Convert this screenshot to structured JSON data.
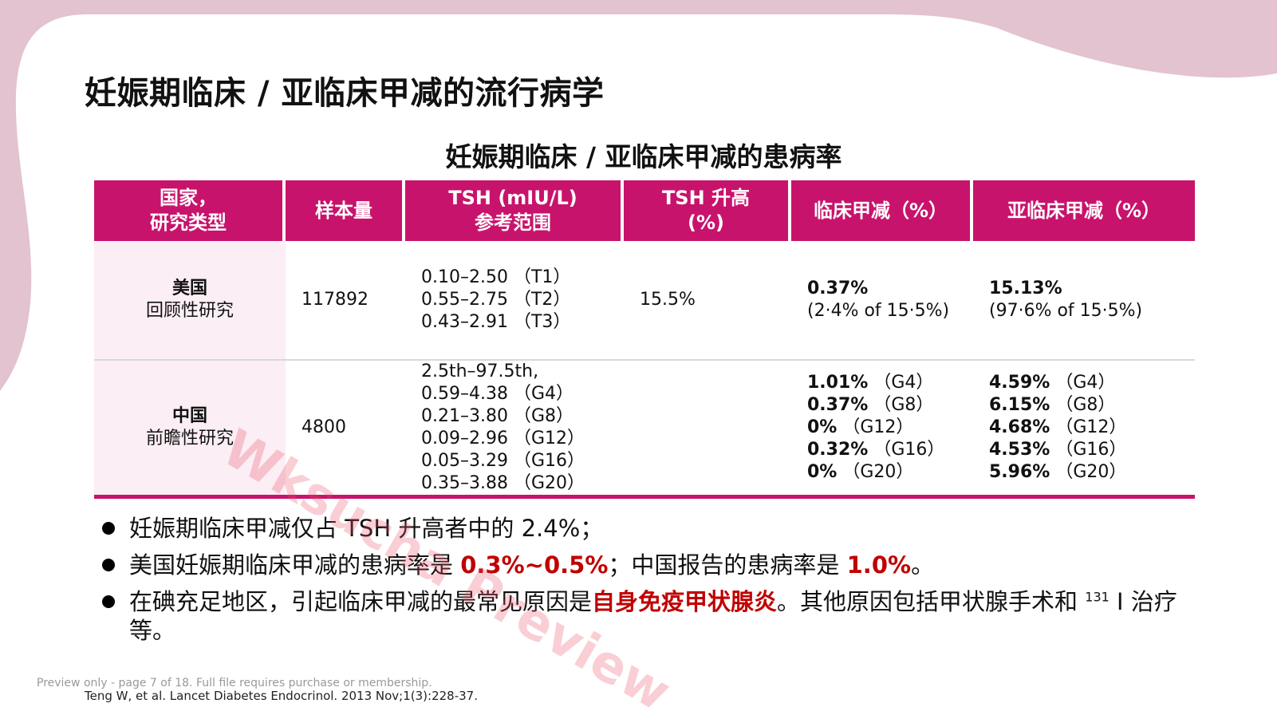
{
  "title": "妊娠期临床 / 亚临床甲减的流行病学",
  "table": {
    "title": "妊娠期临床 / 亚临床甲减的患病率",
    "headers": {
      "country": [
        "国家，",
        "研究类型"
      ],
      "sample": "样本量",
      "tsh_range": [
        "TSH (mIU/L)",
        "参考范围"
      ],
      "tsh_high": [
        "TSH 升高",
        "(%)"
      ],
      "clinical": "临床甲减（%）",
      "subclinical": "亚临床甲减（%）"
    },
    "rows": [
      {
        "country": "美国",
        "study_type": "回顾性研究",
        "sample": "117892",
        "ranges": [
          "0.10–2.50 （T1）",
          "0.55–2.75 （T2）",
          "0.43–2.91 （T3）"
        ],
        "tsh_high": "15.5%",
        "clinical": [
          {
            "value": "0.37%",
            "note": ""
          },
          {
            "value": "",
            "note": "(2·4% of 15·5%)"
          }
        ],
        "subclinical": [
          {
            "value": "15.13%",
            "note": ""
          },
          {
            "value": "",
            "note": "(97·6% of 15·5%)"
          }
        ]
      },
      {
        "country": "中国",
        "study_type": "前瞻性研究",
        "sample": "4800",
        "ranges": [
          "2.5th–97.5th,",
          "0.59–4.38 （G4）",
          "0.21–3.80 （G8）",
          "0.09–2.96 （G12）",
          "0.05–3.29 （G16）",
          "0.35–3.88 （G20）"
        ],
        "tsh_high": "",
        "clinical": [
          {
            "value": "1.01%",
            "note": "（G4）"
          },
          {
            "value": "0.37%",
            "note": "（G8）"
          },
          {
            "value": "0%",
            "note": "（G12）"
          },
          {
            "value": "0.32%",
            "note": "（G16）"
          },
          {
            "value": "0%",
            "note": "（G20）"
          }
        ],
        "subclinical": [
          {
            "value": "4.59%",
            "note": "（G4）"
          },
          {
            "value": "6.15%",
            "note": "（G8）"
          },
          {
            "value": "4.68%",
            "note": "（G12）"
          },
          {
            "value": "4.53%",
            "note": "（G16）"
          },
          {
            "value": "5.96%",
            "note": "（G20）"
          }
        ]
      }
    ]
  },
  "bullets": [
    {
      "text_1": "妊娠期临床甲减仅占 TSH 升高者中的 2.4%；"
    },
    {
      "text_1": "美国妊娠期临床甲减的患病率是 ",
      "highlight_1": "0.3%~0.5%",
      "text_2": "；中国报告的患病率是 ",
      "highlight_2": "1.0%",
      "text_3": "。"
    },
    {
      "text_1": "在碘充足地区，引起临床甲减的最常见原因是",
      "highlight_1": "自身免疫甲状腺炎",
      "text_2": "。其他原因包括甲状腺手术和 ",
      "sup": "131",
      "text_3": " I 治疗等。"
    }
  ],
  "watermark": "Wksucha Preview",
  "preview_note": "Preview only - page 7 of 18. Full file requires purchase or membership.",
  "reference": "Teng W, et al. Lancet Diabetes Endocrinol. 2013 Nov;1(3):228-37.",
  "colors": {
    "accent": "#c8136c",
    "highlight": "#c00000",
    "background_shape": "#e2c3cf",
    "country_cell": "#fbeef4"
  }
}
